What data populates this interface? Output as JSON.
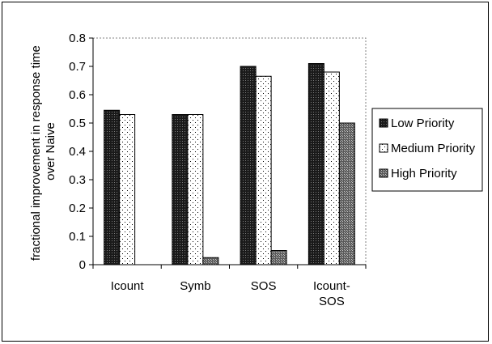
{
  "chart_data": {
    "type": "bar",
    "ylabel_lines": [
      "fractional improvement in response time",
      "over Naive"
    ],
    "ylim": [
      0,
      0.8
    ],
    "yticks": [
      "0",
      "0.1",
      "0.2",
      "0.3",
      "0.4",
      "0.5",
      "0.6",
      "0.7",
      "0.8"
    ],
    "categories": [
      [
        "Icount"
      ],
      [
        "Symb"
      ],
      [
        "SOS"
      ],
      [
        "Icount-",
        "SOS"
      ]
    ],
    "series": [
      {
        "name": "Low Priority",
        "values": [
          0.545,
          0.53,
          0.7,
          0.71
        ],
        "pattern": "dark"
      },
      {
        "name": "Medium Priority",
        "values": [
          0.53,
          0.53,
          0.665,
          0.68
        ],
        "pattern": "dots"
      },
      {
        "name": "High Priority",
        "values": [
          0.0,
          0.025,
          0.05,
          0.5
        ],
        "pattern": "grey"
      }
    ],
    "grid": false,
    "legend_position": "right"
  }
}
